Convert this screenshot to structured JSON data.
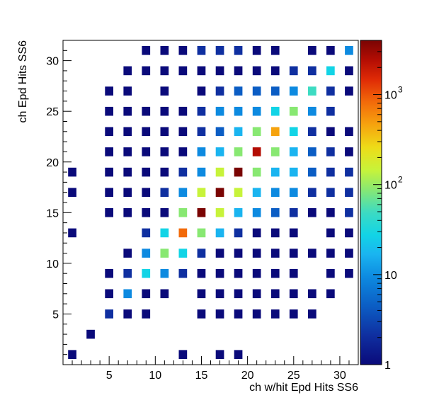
{
  "chart_data": {
    "type": "heatmap",
    "title": "",
    "xlabel": "ch w/hit Epd Hits SS6",
    "ylabel": "ch Epd Hits SS6",
    "xlim": [
      0,
      32
    ],
    "ylim": [
      0,
      32
    ],
    "xticks": [
      "5",
      "10",
      "15",
      "20",
      "25",
      "30"
    ],
    "yticks": [
      "5",
      "10",
      "15",
      "20",
      "25",
      "30"
    ],
    "colorbar": {
      "scale": "log",
      "range": [
        1,
        4000
      ],
      "tick_labels": [
        {
          "base": "1",
          "exp": "",
          "value": 1
        },
        {
          "base": "10",
          "exp": "",
          "value": 10
        },
        {
          "base": "10",
          "exp": "2",
          "value": 100
        },
        {
          "base": "10",
          "exp": "3",
          "value": 1000
        }
      ]
    },
    "cells": [
      {
        "x": 1,
        "y": 1,
        "v": 1.5
      },
      {
        "x": 13,
        "y": 1,
        "v": 1
      },
      {
        "x": 17,
        "y": 1,
        "v": 1
      },
      {
        "x": 19,
        "y": 1,
        "v": 1.3
      },
      {
        "x": 3,
        "y": 3,
        "v": 1
      },
      {
        "x": 5,
        "y": 5,
        "v": 2.5
      },
      {
        "x": 7,
        "y": 5,
        "v": 1
      },
      {
        "x": 9,
        "y": 5,
        "v": 1
      },
      {
        "x": 15,
        "y": 5,
        "v": 1
      },
      {
        "x": 17,
        "y": 5,
        "v": 1
      },
      {
        "x": 19,
        "y": 5,
        "v": 1
      },
      {
        "x": 21,
        "y": 5,
        "v": 1
      },
      {
        "x": 23,
        "y": 5,
        "v": 1
      },
      {
        "x": 25,
        "y": 5,
        "v": 1
      },
      {
        "x": 27,
        "y": 5,
        "v": 1
      },
      {
        "x": 5,
        "y": 7,
        "v": 1
      },
      {
        "x": 7,
        "y": 7,
        "v": 9
      },
      {
        "x": 9,
        "y": 7,
        "v": 1.5
      },
      {
        "x": 11,
        "y": 7,
        "v": 1
      },
      {
        "x": 15,
        "y": 7,
        "v": 1.3
      },
      {
        "x": 17,
        "y": 7,
        "v": 1.5
      },
      {
        "x": 19,
        "y": 7,
        "v": 1
      },
      {
        "x": 21,
        "y": 7,
        "v": 1.3
      },
      {
        "x": 23,
        "y": 7,
        "v": 1.3
      },
      {
        "x": 25,
        "y": 7,
        "v": 1
      },
      {
        "x": 27,
        "y": 7,
        "v": 1
      },
      {
        "x": 29,
        "y": 7,
        "v": 1
      },
      {
        "x": 5,
        "y": 9,
        "v": 1
      },
      {
        "x": 7,
        "y": 9,
        "v": 2
      },
      {
        "x": 9,
        "y": 9,
        "v": 20
      },
      {
        "x": 11,
        "y": 9,
        "v": 8
      },
      {
        "x": 13,
        "y": 9,
        "v": 2.5
      },
      {
        "x": 15,
        "y": 9,
        "v": 1.5
      },
      {
        "x": 17,
        "y": 9,
        "v": 1.3
      },
      {
        "x": 19,
        "y": 9,
        "v": 1.5
      },
      {
        "x": 21,
        "y": 9,
        "v": 1.3
      },
      {
        "x": 23,
        "y": 9,
        "v": 1
      },
      {
        "x": 25,
        "y": 9,
        "v": 1.3
      },
      {
        "x": 29,
        "y": 9,
        "v": 1
      },
      {
        "x": 31,
        "y": 9,
        "v": 1
      },
      {
        "x": 7,
        "y": 11,
        "v": 1
      },
      {
        "x": 9,
        "y": 11,
        "v": 8
      },
      {
        "x": 11,
        "y": 11,
        "v": 50
      },
      {
        "x": 13,
        "y": 11,
        "v": 20
      },
      {
        "x": 15,
        "y": 11,
        "v": 2
      },
      {
        "x": 17,
        "y": 11,
        "v": 1.5
      },
      {
        "x": 19,
        "y": 11,
        "v": 1.3
      },
      {
        "x": 21,
        "y": 11,
        "v": 1.5
      },
      {
        "x": 23,
        "y": 11,
        "v": 1.3
      },
      {
        "x": 25,
        "y": 11,
        "v": 1
      },
      {
        "x": 27,
        "y": 11,
        "v": 1
      },
      {
        "x": 29,
        "y": 11,
        "v": 1
      },
      {
        "x": 31,
        "y": 11,
        "v": 1
      },
      {
        "x": 1,
        "y": 13,
        "v": 1
      },
      {
        "x": 9,
        "y": 13,
        "v": 2.5
      },
      {
        "x": 11,
        "y": 13,
        "v": 20
      },
      {
        "x": 13,
        "y": 13,
        "v": 600
      },
      {
        "x": 15,
        "y": 13,
        "v": 50
      },
      {
        "x": 17,
        "y": 13,
        "v": 10
      },
      {
        "x": 19,
        "y": 13,
        "v": 3
      },
      {
        "x": 21,
        "y": 13,
        "v": 1.3
      },
      {
        "x": 23,
        "y": 13,
        "v": 1.5
      },
      {
        "x": 25,
        "y": 13,
        "v": 1
      },
      {
        "x": 29,
        "y": 13,
        "v": 1
      },
      {
        "x": 31,
        "y": 13,
        "v": 1
      },
      {
        "x": 5,
        "y": 15,
        "v": 1
      },
      {
        "x": 7,
        "y": 15,
        "v": 1.3
      },
      {
        "x": 9,
        "y": 15,
        "v": 1.3
      },
      {
        "x": 11,
        "y": 15,
        "v": 1.5
      },
      {
        "x": 13,
        "y": 15,
        "v": 60
      },
      {
        "x": 15,
        "y": 15,
        "v": 2500
      },
      {
        "x": 17,
        "y": 15,
        "v": 90
      },
      {
        "x": 19,
        "y": 15,
        "v": 10
      },
      {
        "x": 21,
        "y": 15,
        "v": 8
      },
      {
        "x": 23,
        "y": 15,
        "v": 5
      },
      {
        "x": 25,
        "y": 15,
        "v": 2
      },
      {
        "x": 27,
        "y": 15,
        "v": 1.3
      },
      {
        "x": 29,
        "y": 15,
        "v": 1.5
      },
      {
        "x": 31,
        "y": 15,
        "v": 3
      },
      {
        "x": 1,
        "y": 17,
        "v": 1
      },
      {
        "x": 5,
        "y": 17,
        "v": 1
      },
      {
        "x": 7,
        "y": 17,
        "v": 1.5
      },
      {
        "x": 9,
        "y": 17,
        "v": 1.5
      },
      {
        "x": 11,
        "y": 17,
        "v": 3
      },
      {
        "x": 13,
        "y": 17,
        "v": 9
      },
      {
        "x": 15,
        "y": 17,
        "v": 90
      },
      {
        "x": 17,
        "y": 17,
        "v": 3800
      },
      {
        "x": 19,
        "y": 17,
        "v": 120
      },
      {
        "x": 21,
        "y": 17,
        "v": 10
      },
      {
        "x": 23,
        "y": 17,
        "v": 9
      },
      {
        "x": 25,
        "y": 17,
        "v": 7
      },
      {
        "x": 27,
        "y": 17,
        "v": 3
      },
      {
        "x": 29,
        "y": 17,
        "v": 2.5
      },
      {
        "x": 31,
        "y": 17,
        "v": 2.5
      },
      {
        "x": 1,
        "y": 19,
        "v": 1.5
      },
      {
        "x": 5,
        "y": 19,
        "v": 1
      },
      {
        "x": 7,
        "y": 19,
        "v": 1
      },
      {
        "x": 9,
        "y": 19,
        "v": 1.5
      },
      {
        "x": 11,
        "y": 19,
        "v": 1.5
      },
      {
        "x": 13,
        "y": 19,
        "v": 3
      },
      {
        "x": 15,
        "y": 19,
        "v": 9
      },
      {
        "x": 17,
        "y": 19,
        "v": 120
      },
      {
        "x": 19,
        "y": 19,
        "v": 3800
      },
      {
        "x": 21,
        "y": 19,
        "v": 70
      },
      {
        "x": 23,
        "y": 19,
        "v": 10
      },
      {
        "x": 25,
        "y": 19,
        "v": 10
      },
      {
        "x": 27,
        "y": 19,
        "v": 5
      },
      {
        "x": 29,
        "y": 19,
        "v": 3
      },
      {
        "x": 31,
        "y": 19,
        "v": 3
      },
      {
        "x": 5,
        "y": 21,
        "v": 1
      },
      {
        "x": 7,
        "y": 21,
        "v": 1.3
      },
      {
        "x": 9,
        "y": 21,
        "v": 1.5
      },
      {
        "x": 11,
        "y": 21,
        "v": 1.5
      },
      {
        "x": 13,
        "y": 21,
        "v": 1.5
      },
      {
        "x": 15,
        "y": 21,
        "v": 7
      },
      {
        "x": 17,
        "y": 21,
        "v": 10
      },
      {
        "x": 19,
        "y": 21,
        "v": 70
      },
      {
        "x": 21,
        "y": 21,
        "v": 1500
      },
      {
        "x": 23,
        "y": 21,
        "v": 60
      },
      {
        "x": 25,
        "y": 21,
        "v": 10
      },
      {
        "x": 27,
        "y": 21,
        "v": 5
      },
      {
        "x": 29,
        "y": 21,
        "v": 2
      },
      {
        "x": 31,
        "y": 21,
        "v": 1.5
      },
      {
        "x": 5,
        "y": 23,
        "v": 1
      },
      {
        "x": 7,
        "y": 23,
        "v": 1.3
      },
      {
        "x": 9,
        "y": 23,
        "v": 1
      },
      {
        "x": 11,
        "y": 23,
        "v": 1.5
      },
      {
        "x": 13,
        "y": 23,
        "v": 1.5
      },
      {
        "x": 15,
        "y": 23,
        "v": 3
      },
      {
        "x": 17,
        "y": 23,
        "v": 5
      },
      {
        "x": 19,
        "y": 23,
        "v": 10
      },
      {
        "x": 21,
        "y": 23,
        "v": 50
      },
      {
        "x": 23,
        "y": 23,
        "v": 400
      },
      {
        "x": 25,
        "y": 23,
        "v": 20
      },
      {
        "x": 27,
        "y": 23,
        "v": 2.5
      },
      {
        "x": 29,
        "y": 23,
        "v": 1.5
      },
      {
        "x": 31,
        "y": 23,
        "v": 1.3
      },
      {
        "x": 5,
        "y": 25,
        "v": 1
      },
      {
        "x": 7,
        "y": 25,
        "v": 1.3
      },
      {
        "x": 9,
        "y": 25,
        "v": 1
      },
      {
        "x": 11,
        "y": 25,
        "v": 1.3
      },
      {
        "x": 13,
        "y": 25,
        "v": 1
      },
      {
        "x": 15,
        "y": 25,
        "v": 3
      },
      {
        "x": 17,
        "y": 25,
        "v": 7
      },
      {
        "x": 19,
        "y": 25,
        "v": 9
      },
      {
        "x": 21,
        "y": 25,
        "v": 7
      },
      {
        "x": 23,
        "y": 25,
        "v": 20
      },
      {
        "x": 25,
        "y": 25,
        "v": 50
      },
      {
        "x": 27,
        "y": 25,
        "v": 6
      },
      {
        "x": 29,
        "y": 25,
        "v": 2
      },
      {
        "x": 5,
        "y": 27,
        "v": 1
      },
      {
        "x": 7,
        "y": 27,
        "v": 1
      },
      {
        "x": 11,
        "y": 27,
        "v": 1
      },
      {
        "x": 15,
        "y": 27,
        "v": 1.5
      },
      {
        "x": 17,
        "y": 27,
        "v": 3
      },
      {
        "x": 19,
        "y": 27,
        "v": 5
      },
      {
        "x": 21,
        "y": 27,
        "v": 5
      },
      {
        "x": 23,
        "y": 27,
        "v": 5
      },
      {
        "x": 25,
        "y": 27,
        "v": 9
      },
      {
        "x": 27,
        "y": 27,
        "v": 30
      },
      {
        "x": 29,
        "y": 27,
        "v": 3
      },
      {
        "x": 31,
        "y": 27,
        "v": 1.3
      },
      {
        "x": 7,
        "y": 29,
        "v": 1
      },
      {
        "x": 9,
        "y": 29,
        "v": 1
      },
      {
        "x": 11,
        "y": 29,
        "v": 1
      },
      {
        "x": 13,
        "y": 29,
        "v": 1
      },
      {
        "x": 15,
        "y": 29,
        "v": 1.3
      },
      {
        "x": 17,
        "y": 29,
        "v": 1.5
      },
      {
        "x": 19,
        "y": 29,
        "v": 1.5
      },
      {
        "x": 21,
        "y": 29,
        "v": 1.5
      },
      {
        "x": 23,
        "y": 29,
        "v": 1.5
      },
      {
        "x": 25,
        "y": 29,
        "v": 2
      },
      {
        "x": 27,
        "y": 29,
        "v": 2
      },
      {
        "x": 29,
        "y": 29,
        "v": 25
      },
      {
        "x": 31,
        "y": 29,
        "v": 1.3
      },
      {
        "x": 9,
        "y": 31,
        "v": 1
      },
      {
        "x": 11,
        "y": 31,
        "v": 1
      },
      {
        "x": 13,
        "y": 31,
        "v": 1
      },
      {
        "x": 15,
        "y": 31,
        "v": 3
      },
      {
        "x": 17,
        "y": 31,
        "v": 3
      },
      {
        "x": 19,
        "y": 31,
        "v": 2
      },
      {
        "x": 21,
        "y": 31,
        "v": 1.5
      },
      {
        "x": 23,
        "y": 31,
        "v": 1.3
      },
      {
        "x": 27,
        "y": 31,
        "v": 1
      },
      {
        "x": 29,
        "y": 31,
        "v": 1.3
      },
      {
        "x": 31,
        "y": 31,
        "v": 8
      }
    ]
  },
  "colors": {
    "palette": [
      "#0a0a7a",
      "#0f2fa0",
      "#0b5dc4",
      "#0d8ae0",
      "#1ab4f0",
      "#12d4e6",
      "#3ddbc2",
      "#88e872",
      "#c7f33a",
      "#eedc18",
      "#f6a30e",
      "#f26a0a",
      "#df2a06",
      "#b30d03",
      "#7a0403"
    ]
  }
}
